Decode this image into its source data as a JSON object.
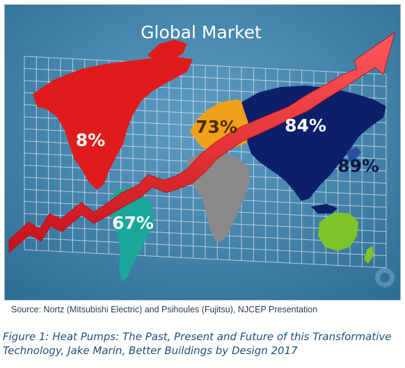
{
  "figure": {
    "title": "Global Market",
    "labels": {
      "north_america": "8%",
      "europe": "73%",
      "asia": "84%",
      "japan": "89%",
      "south_america": "67%"
    },
    "colors": {
      "background": "#3f7fa6",
      "north_america": "#e01b1b",
      "europe": "#f0a11a",
      "asia": "#0b1f6b",
      "africa": "#8a8a8a",
      "south_america": "#1aa79a",
      "australia": "#7cc42a",
      "arrow": "#ee1c24"
    }
  },
  "source": "Source: Nortz (Mitsubishi Electric) and Psihoules (Fujitsu), NJCEP Presentation",
  "caption": {
    "line1": "Figure 1: Heat Pumps: The Past, Present and Future of this Transformative",
    "line2": "Technology, Jake Marin, Better Buildings by Design 2017"
  }
}
